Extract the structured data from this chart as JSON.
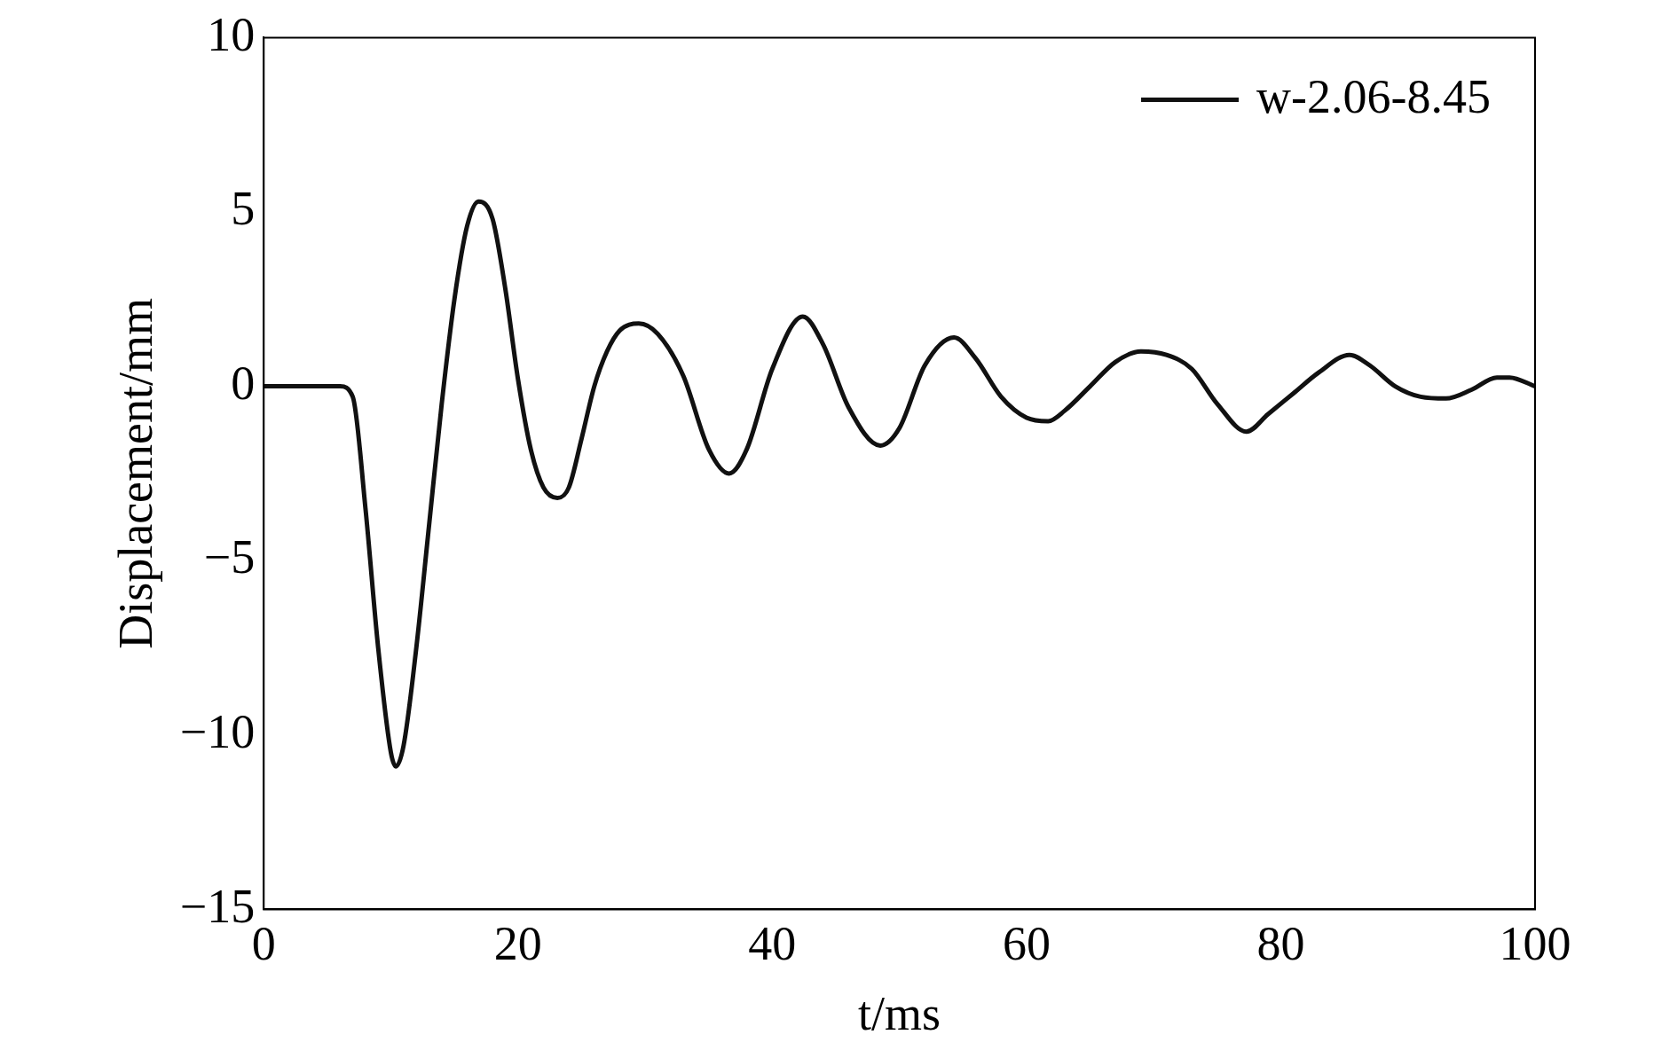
{
  "chart_data": {
    "type": "line",
    "xlabel": "t/ms",
    "ylabel": "Displacement/mm",
    "xlim": [
      0,
      100
    ],
    "xticks": [
      0,
      20,
      40,
      60,
      80,
      100
    ],
    "ylim": [
      -15,
      10
    ],
    "yticks": [
      -15,
      -10,
      -5,
      0,
      5,
      10
    ],
    "grid": false,
    "legend": "top right",
    "marker": "none",
    "line_style": "solid",
    "series": [
      {
        "name": "w-2.06-8.45",
        "color": "#111111",
        "x": [
          0,
          6,
          7,
          8,
          9,
          10,
          10.4,
          11,
          12,
          13,
          14,
          15,
          16,
          16.9,
          18,
          19,
          20,
          21,
          22,
          23.1,
          24,
          25,
          26,
          27,
          28,
          29.5,
          31,
          33,
          35,
          36.6,
          38,
          40,
          42.4,
          44,
          46,
          48.5,
          50,
          52,
          54.3,
          56,
          58,
          60,
          61.7,
          63,
          65,
          67,
          69,
          71,
          73,
          75,
          77.3,
          79,
          81,
          83,
          85.4,
          87,
          89,
          91,
          93,
          95,
          97,
          98,
          100
        ],
        "values": [
          0,
          0,
          -0.3,
          -3.5,
          -7.5,
          -10.5,
          -10.9,
          -10.3,
          -7.5,
          -4,
          -0.5,
          2.5,
          4.6,
          5.3,
          4.8,
          2.8,
          0.2,
          -1.8,
          -2.9,
          -3.2,
          -2.9,
          -1.5,
          0,
          1,
          1.6,
          1.8,
          1.5,
          0.3,
          -1.8,
          -2.5,
          -1.8,
          0.5,
          2,
          1.2,
          -0.6,
          -1.7,
          -1.2,
          0.6,
          1.4,
          0.8,
          -0.3,
          -0.9,
          -1,
          -0.7,
          0,
          0.7,
          1,
          0.9,
          0.5,
          -0.5,
          -1.3,
          -0.8,
          -0.2,
          0.4,
          0.9,
          0.6,
          0,
          -0.3,
          -0.35,
          -0.1,
          0.25,
          0.25,
          0
        ]
      }
    ]
  }
}
